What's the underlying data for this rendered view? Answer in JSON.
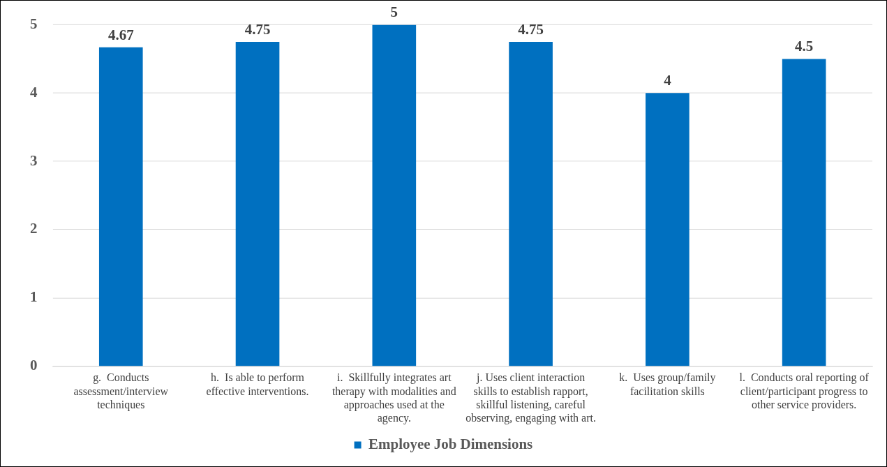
{
  "chart_data": {
    "type": "bar",
    "categories": [
      "g.  Conducts assessment/interview techniques",
      "h.  Is able to perform effective interventions.",
      "i.  Skillfully integrates art therapy with modalities and approaches used at the agency.",
      "j. Uses client interaction skills to establish rapport, skillful listening, careful observing, engaging with art.",
      "k.  Uses group/family facilitation skills",
      "l.  Conducts oral reporting of client/participant progress to other service providers."
    ],
    "series": [
      {
        "name": "Employee Job Dimensions",
        "color": "#0070c0",
        "values": [
          4.67,
          4.75,
          5,
          4.75,
          4,
          4.5
        ]
      }
    ],
    "ylim": [
      0,
      5
    ],
    "yticks": [
      0,
      1,
      2,
      3,
      4,
      5
    ],
    "grid": "y",
    "legend": "bottom",
    "data_labels": true
  }
}
